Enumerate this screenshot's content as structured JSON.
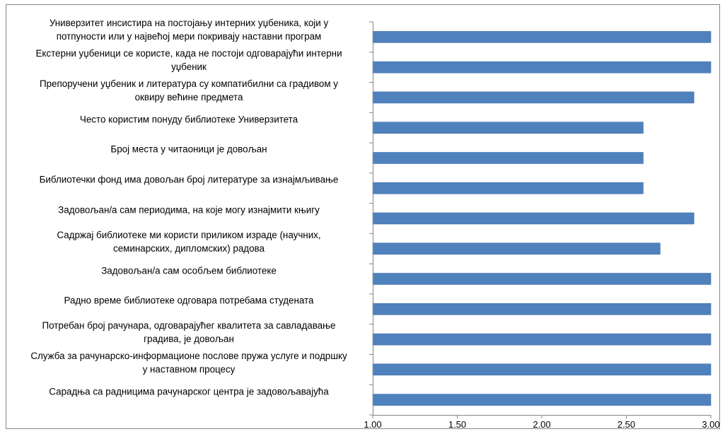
{
  "chart_data": {
    "type": "bar",
    "orientation": "horizontal",
    "categories": [
      [
        "Универзитет инсистира на постојању интерних уџбеника, који у",
        "потпуности или у највећој мери покривају наставни програм"
      ],
      [
        "Екстерни уџбеници се користе, када не постоји одговарајући интерни",
        "уџбеник"
      ],
      [
        "Препоручени уџбеник и литература су компатибилни са градивом у",
        "оквиру већине предмета"
      ],
      [
        "Често користим понуду библиотеке Универзитета"
      ],
      [
        "Број места у читаоници је довољан"
      ],
      [
        "Библиотечки фонд има довољан број литературе за изнајмљивање"
      ],
      [
        "Задовољан/а сам периодима, на које могу изнајмити књигу"
      ],
      [
        "Садржај библиотеке ми користи приликом израде (научних,",
        "семинарских, дипломских) радова"
      ],
      [
        "Задовољан/а сам особљем библиотеке"
      ],
      [
        "Радно време библиотеке одговара потребама студената"
      ],
      [
        "Потребан број рачунара, одговарајућег квалитета за савладавање",
        "градива, је довољан"
      ],
      [
        "Служба за рачунарско-информационе послове пружа услуге и подршку",
        "у наставном процесу"
      ],
      [
        "Сарадња са радницима рачунарског центра је задовољавајућа"
      ]
    ],
    "values": [
      3.0,
      3.0,
      2.9,
      2.6,
      2.6,
      2.6,
      2.9,
      2.7,
      3.0,
      3.0,
      3.0,
      3.0,
      3.0
    ],
    "xlim": [
      1.0,
      3.0
    ],
    "xticks": [
      "1.00",
      "1.50",
      "2.00",
      "2.50",
      "3.00"
    ],
    "grid": false,
    "legend": "none",
    "bar_color": "#4f81bd",
    "bar_edge_color": "#3f6fa8"
  }
}
